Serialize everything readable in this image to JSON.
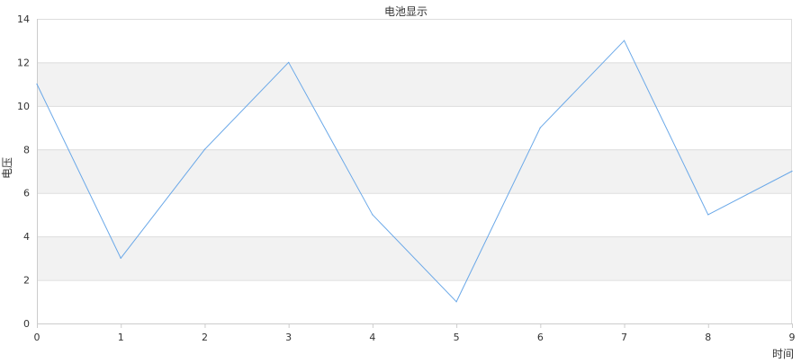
{
  "chart_data": {
    "type": "line",
    "title": "电池显示",
    "xlabel": "时间",
    "ylabel": "电压",
    "x": [
      0,
      1,
      2,
      3,
      4,
      5,
      6,
      7,
      8,
      9
    ],
    "xlim": [
      0,
      9
    ],
    "ylim": [
      0,
      14
    ],
    "y_ticks": [
      0,
      2,
      4,
      6,
      8,
      10,
      12,
      14
    ],
    "x_ticks": [
      0,
      1,
      2,
      3,
      4,
      5,
      6,
      7,
      8,
      9
    ],
    "grid": "horizontal alternating bands",
    "legend": "none",
    "series": [
      {
        "values": [
          11,
          3,
          8,
          12,
          5,
          1,
          9,
          13,
          5,
          7
        ],
        "color": "#6aa8e8"
      }
    ],
    "colors": {
      "band": "#f2f2f2",
      "gridline": "#dddddd",
      "axis": "#cccccc",
      "text": "#333333"
    }
  }
}
